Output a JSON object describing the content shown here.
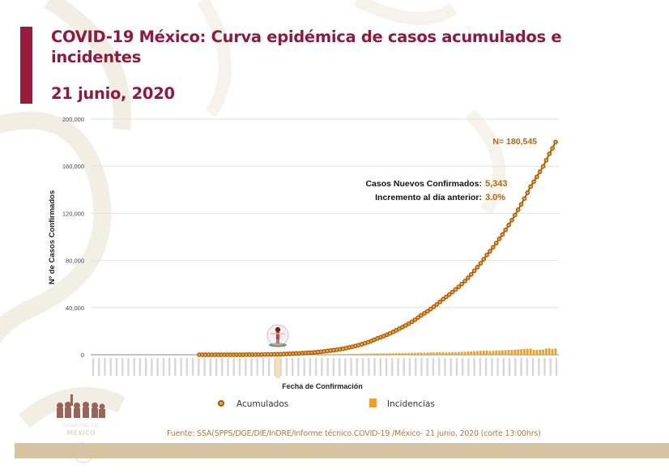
{
  "slide": {
    "title": "COVID-19 México: Curva epidémica de casos acumulados e incidentes",
    "title_line1": "COVID-19 México: Curva epidémica de casos acumulados e",
    "title_line2": "incidentes",
    "date": "21 junio, 2020",
    "source": "Fuente: SSA(SPPS/DGE/DIE/InDRE/Informe técnico.COVID-19 /México- 21 junio, 2020 (corte 13:00hrs)",
    "colors": {
      "title": "#8f1a3e",
      "accent_bar": "#9b1b3f",
      "cumulative": "#b5650d",
      "cumulative_fill": "#f2a33a",
      "incidence": "#f39c1e",
      "annotation_value": "#b5650d",
      "footer_band": "#d6c3a1"
    }
  },
  "annotations": {
    "total": "N= 180,545",
    "new_cases_label": "Casos Nuevos Confirmados:",
    "new_cases_value": "5,343",
    "increase_label": "Incremento al día anterior:",
    "increase_value": "3.0%"
  },
  "legend": {
    "cumulative": "Acumulados",
    "incidence": "Incidencias"
  },
  "chart_data": {
    "type": "line",
    "title": "COVID-19 México: Curva epidémica de casos acumulados e incidentes",
    "subtitle": "21 junio, 2020",
    "xlabel": "Fecha de Confirmación",
    "ylabel": "Nº de Casos Confirmados",
    "ylim": [
      0,
      200000
    ],
    "yticks": [
      0,
      40000,
      80000,
      120000,
      160000,
      200000
    ],
    "ytick_labels": [
      "0",
      "40,000",
      "80,000",
      "120,000",
      "160,000",
      "200,000"
    ],
    "grid": true,
    "legend_position": "bottom",
    "x_range_description": "Daily dates from mid-January 2020 to 21/06/2020 (tick labels rotated, illegible at source resolution)",
    "x_end_label": "21/06/2020",
    "series": [
      {
        "name": "Acumulados",
        "kind": "line-markers",
        "x": [
          "28/02",
          "07/03",
          "14/03",
          "21/03",
          "28/03",
          "04/04",
          "11/04",
          "18/04",
          "25/04",
          "02/05",
          "09/05",
          "16/05",
          "23/05",
          "30/05",
          "06/06",
          "13/06",
          "17/06",
          "19/06",
          "20/06",
          "21/06"
        ],
        "values": [
          1,
          7,
          41,
          251,
          848,
          1890,
          3844,
          7497,
          13842,
          22088,
          33460,
          47144,
          62527,
          84627,
          110026,
          142690,
          159793,
          170485,
          175202,
          180545
        ]
      },
      {
        "name": "Incidencias",
        "kind": "bar",
        "x": [
          "21/03",
          "04/04",
          "18/04",
          "02/05",
          "16/05",
          "30/05",
          "06/06",
          "13/06",
          "19/06",
          "20/06",
          "21/06"
        ],
        "values": [
          63,
          146,
          578,
          1515,
          2414,
          3227,
          3593,
          4790,
          5662,
          4717,
          5343
        ]
      }
    ],
    "annotations": [
      {
        "text": "N= 180,545"
      },
      {
        "text": "Casos Nuevos Confirmados: 5,343"
      },
      {
        "text": "Incremento al día anterior: 3.0%"
      }
    ]
  }
}
